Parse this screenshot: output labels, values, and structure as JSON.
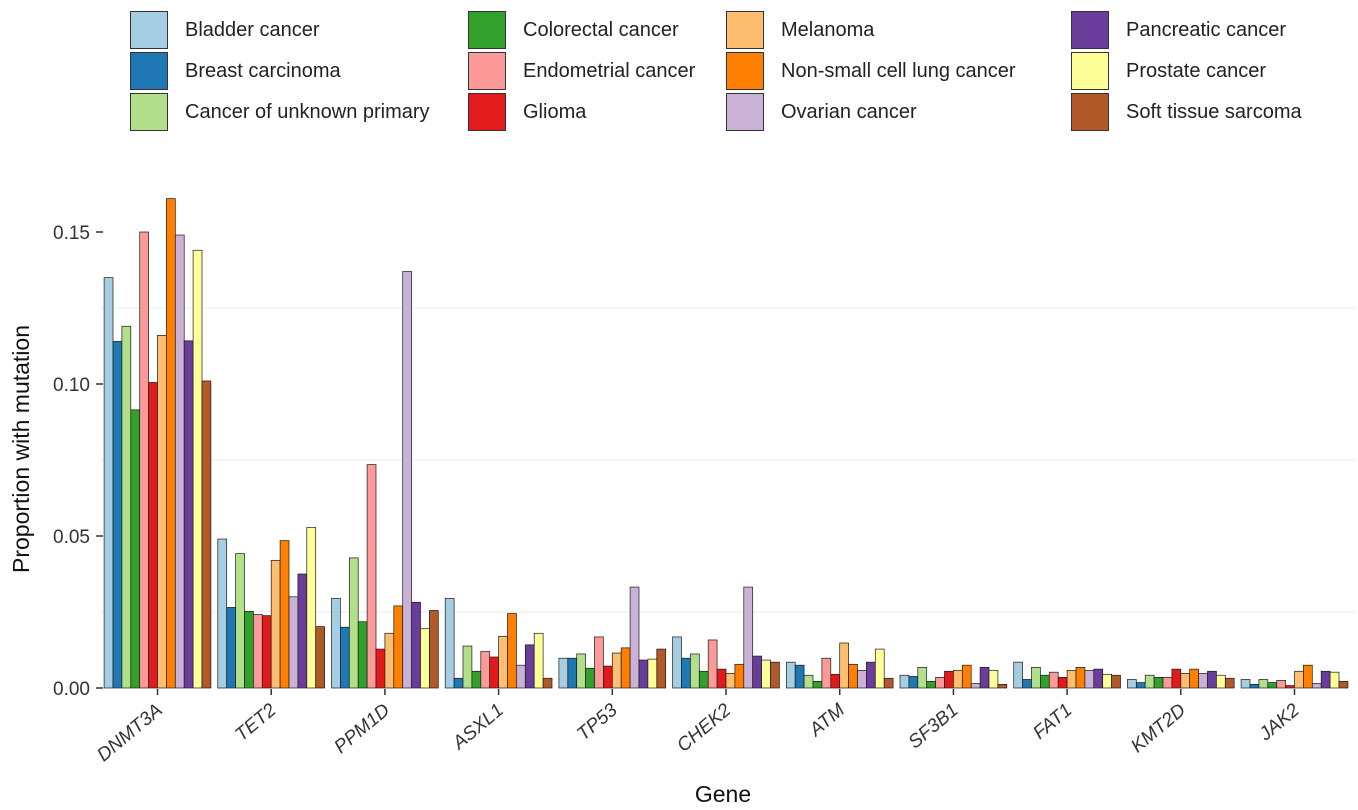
{
  "chart_data": {
    "type": "bar",
    "xlabel": "Gene",
    "ylabel": "Proportion with mutation",
    "ylim": [
      0,
      0.165
    ],
    "yticks": [
      "0.00",
      "0.05",
      "0.10",
      "0.15"
    ],
    "grid": "horizontal",
    "legend_position": "top",
    "categories": [
      "DNMT3A",
      "TET2",
      "PPM1D",
      "ASXL1",
      "TP53",
      "CHEK2",
      "ATM",
      "SF3B1",
      "FAT1",
      "KMT2D",
      "JAK2"
    ],
    "series": [
      {
        "name": "Bladder cancer",
        "color": "#a6cee3",
        "values": [
          0.135,
          0.049,
          0.0295,
          0.0295,
          0.0098,
          0.0168,
          0.0085,
          0.0042,
          0.0085,
          0.0028,
          0.0028
        ]
      },
      {
        "name": "Breast carcinoma",
        "color": "#1f78b4",
        "values": [
          0.114,
          0.0265,
          0.02,
          0.0032,
          0.0098,
          0.0098,
          0.0075,
          0.0038,
          0.0028,
          0.0018,
          0.0012
        ]
      },
      {
        "name": "Cancer of unknown primary",
        "color": "#b2df8a",
        "values": [
          0.119,
          0.0442,
          0.0428,
          0.0138,
          0.0112,
          0.0112,
          0.0042,
          0.0068,
          0.0068,
          0.0042,
          0.0028
        ]
      },
      {
        "name": "Colorectal cancer",
        "color": "#33a02c",
        "values": [
          0.0915,
          0.0252,
          0.0218,
          0.0055,
          0.0065,
          0.0055,
          0.0022,
          0.0022,
          0.0042,
          0.0035,
          0.0018
        ]
      },
      {
        "name": "Endometrial cancer",
        "color": "#fb9a99",
        "values": [
          0.15,
          0.0242,
          0.0735,
          0.012,
          0.0168,
          0.0158,
          0.0098,
          0.0035,
          0.0052,
          0.0035,
          0.0025
        ]
      },
      {
        "name": "Glioma",
        "color": "#e31a1c",
        "values": [
          0.1005,
          0.0238,
          0.0128,
          0.0102,
          0.0072,
          0.0062,
          0.0045,
          0.0055,
          0.0035,
          0.0062,
          0.0008
        ]
      },
      {
        "name": "Melanoma",
        "color": "#fdbf6f",
        "values": [
          0.116,
          0.042,
          0.018,
          0.017,
          0.0115,
          0.0048,
          0.0148,
          0.0058,
          0.0058,
          0.0048,
          0.0055
        ]
      },
      {
        "name": "Non-small cell lung cancer",
        "color": "#ff7f00",
        "values": [
          0.161,
          0.0485,
          0.027,
          0.0245,
          0.0132,
          0.0078,
          0.0078,
          0.0075,
          0.0068,
          0.0062,
          0.0075
        ]
      },
      {
        "name": "Ovarian cancer",
        "color": "#cab2d6",
        "values": [
          0.149,
          0.03,
          0.137,
          0.0075,
          0.0332,
          0.0332,
          0.0058,
          0.0015,
          0.0058,
          0.0048,
          0.0015
        ]
      },
      {
        "name": "Pancreatic cancer",
        "color": "#6a3d9a",
        "values": [
          0.1142,
          0.0375,
          0.0282,
          0.0142,
          0.0092,
          0.0105,
          0.0085,
          0.0068,
          0.0062,
          0.0055,
          0.0055
        ]
      },
      {
        "name": "Prostate cancer",
        "color": "#ffff99",
        "values": [
          0.144,
          0.0528,
          0.0195,
          0.018,
          0.0095,
          0.0092,
          0.0128,
          0.0058,
          0.0045,
          0.0042,
          0.0052
        ]
      },
      {
        "name": "Soft tissue sarcoma",
        "color": "#b15928",
        "values": [
          0.101,
          0.0202,
          0.0255,
          0.0032,
          0.0128,
          0.0085,
          0.0032,
          0.0012,
          0.0042,
          0.0032,
          0.0022
        ]
      }
    ]
  }
}
